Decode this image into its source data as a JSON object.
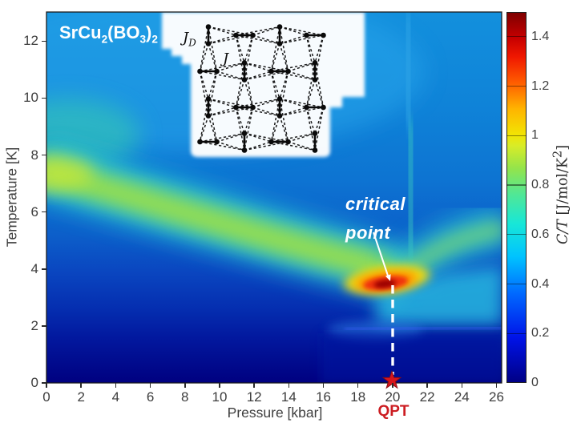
{
  "figure": {
    "title_segments": [
      {
        "t": "SrCu"
      },
      {
        "sub": "2"
      },
      {
        "t": "(BO"
      },
      {
        "sub": "3"
      },
      {
        "t": ")"
      },
      {
        "sub": "2"
      }
    ],
    "background": "#ffffff"
  },
  "axes": {
    "x": {
      "label": "Pressure [kbar]",
      "ticks": [
        0,
        2,
        4,
        6,
        8,
        10,
        12,
        14,
        16,
        18,
        20,
        22,
        24,
        26
      ],
      "range": [
        0,
        26.3
      ]
    },
    "y": {
      "label": "Temperature [K]",
      "ticks": [
        0,
        2,
        4,
        6,
        8,
        10,
        12
      ],
      "range": [
        0,
        13
      ]
    },
    "colorbar": {
      "label_segments": [
        {
          "t": "C/T",
          "i": true
        },
        {
          "t": " [J/mol/K"
        },
        {
          "sup": "2"
        },
        {
          "t": "]"
        }
      ],
      "tick_labels": [
        "0",
        "0.2",
        "0.4",
        "0.6",
        "0.8",
        "1",
        "1.2",
        "1.4"
      ],
      "tick_values": [
        0,
        0.2,
        0.4,
        0.6,
        0.8,
        1.0,
        1.2,
        1.4
      ],
      "range": [
        0,
        1.5
      ]
    }
  },
  "annotations": {
    "critical_point": {
      "lines": [
        "critical",
        "point"
      ],
      "color": "#ffffff",
      "target_P": 20,
      "target_T": 3.6
    },
    "qpt": {
      "label": "QPT",
      "color": "#cc1d22",
      "pressure": 20
    },
    "star": {
      "color": "#d6151c",
      "P": 20,
      "T": 0
    },
    "dashed_line": {
      "color": "#ffffff",
      "P": 20
    }
  },
  "inset": {
    "jd_segments": [
      {
        "t": "J",
        "i": true
      },
      {
        "sub": "D",
        "i": true
      }
    ],
    "j_segments": [
      {
        "t": "J",
        "i": true
      }
    ],
    "lattice": {
      "rows": 4,
      "cols": 4,
      "pattern": "alternating vertical/horizontal dimers with dashed inter-dimer bonds"
    }
  },
  "chart_data": {
    "type": "heatmap",
    "title": "SrCu2(BO3)2",
    "xlabel": "Pressure [kbar]",
    "ylabel": "Temperature [K]",
    "zlabel": "C/T [J/mol/K^2]",
    "x_range": [
      0,
      26.3
    ],
    "y_range": [
      0,
      13
    ],
    "z_range": [
      0,
      1.5
    ],
    "colormap": "jet",
    "grid": false,
    "legend_position": "right-colorbar",
    "features": {
      "ridge_line_P_T": [
        [
          0,
          7.4
        ],
        [
          4,
          6.6
        ],
        [
          8,
          5.9
        ],
        [
          12,
          5.3
        ],
        [
          16,
          4.7
        ],
        [
          18,
          4.3
        ],
        [
          20,
          3.6
        ]
      ],
      "ridge_value_approx": 0.85,
      "critical_point": {
        "P": 20,
        "T": 3.6,
        "value_approx": 1.5
      },
      "qpt": {
        "P": 20,
        "T": 0
      },
      "high_pressure_branch_P_T": [
        [
          21.5,
          4.6
        ],
        [
          23,
          5.1
        ],
        [
          26.3,
          5.6
        ]
      ],
      "vertical_stripe_P": 21.2,
      "low_T_boundary_K": 1.8,
      "background_value_low_T": 0.1,
      "background_value_high_T": 0.45
    }
  },
  "colors": {
    "accent_red": "#cc1d22",
    "star_fill": "#d6151c",
    "annotation_white": "#ffffff",
    "tick_text": "#3d3d3d"
  }
}
